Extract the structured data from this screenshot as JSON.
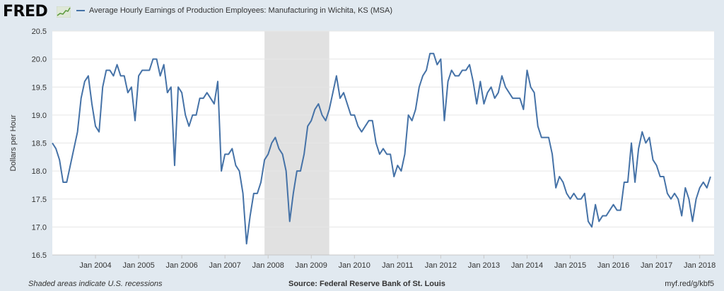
{
  "header": {
    "logo": "FRED",
    "legend_label": "Average Hourly Earnings of Production Employees: Manufacturing in Wichita, KS (MSA)"
  },
  "colors": {
    "line": "#4572a7",
    "recession": "#e1e1e1",
    "plot_bg": "#ffffff",
    "page_bg": "#e1e9f0",
    "grid": "#e6e6e6"
  },
  "chart_data": {
    "type": "line",
    "ylabel": "Dollars per Hour",
    "ylim": [
      16.5,
      20.5
    ],
    "yticks": [
      "16.5",
      "17.0",
      "17.5",
      "18.0",
      "18.5",
      "19.0",
      "19.5",
      "20.0",
      "20.5"
    ],
    "xlim": [
      "2003-01",
      "2018-05"
    ],
    "xticks": [
      {
        "date": "2004-01",
        "label": "Jan 2004"
      },
      {
        "date": "2005-01",
        "label": "Jan 2005"
      },
      {
        "date": "2006-01",
        "label": "Jan 2006"
      },
      {
        "date": "2007-01",
        "label": "Jan 2007"
      },
      {
        "date": "2008-01",
        "label": "Jan 2008"
      },
      {
        "date": "2009-01",
        "label": "Jan 2009"
      },
      {
        "date": "2010-01",
        "label": "Jan 2010"
      },
      {
        "date": "2011-01",
        "label": "Jan 2011"
      },
      {
        "date": "2012-01",
        "label": "Jan 2012"
      },
      {
        "date": "2013-01",
        "label": "Jan 2013"
      },
      {
        "date": "2014-01",
        "label": "Jan 2014"
      },
      {
        "date": "2015-01",
        "label": "Jan 2015"
      },
      {
        "date": "2016-01",
        "label": "Jan 2016"
      },
      {
        "date": "2017-01",
        "label": "Jan 2017"
      },
      {
        "date": "2018-01",
        "label": "Jan 2018"
      }
    ],
    "recessions": [
      {
        "start": "2007-12",
        "end": "2009-06"
      }
    ],
    "grid": true,
    "series": [
      {
        "start": "2003-01",
        "frequency": "monthly",
        "values": [
          18.5,
          18.4,
          18.2,
          17.8,
          17.8,
          18.1,
          18.4,
          18.7,
          19.3,
          19.6,
          19.7,
          19.2,
          18.8,
          18.7,
          19.5,
          19.8,
          19.8,
          19.7,
          19.9,
          19.7,
          19.7,
          19.4,
          19.5,
          18.9,
          19.7,
          19.8,
          19.8,
          19.8,
          20.0,
          20.0,
          19.7,
          19.9,
          19.4,
          19.5,
          18.1,
          19.5,
          19.4,
          19.0,
          18.8,
          19.0,
          19.0,
          19.3,
          19.3,
          19.4,
          19.3,
          19.2,
          19.6,
          18.0,
          18.3,
          18.3,
          18.4,
          18.1,
          18.0,
          17.6,
          16.7,
          17.2,
          17.6,
          17.6,
          17.8,
          18.2,
          18.3,
          18.5,
          18.6,
          18.4,
          18.3,
          18.0,
          17.1,
          17.6,
          18.0,
          18.0,
          18.3,
          18.8,
          18.9,
          19.1,
          19.2,
          19.0,
          18.9,
          19.1,
          19.4,
          19.7,
          19.3,
          19.4,
          19.2,
          19.0,
          19.0,
          18.8,
          18.7,
          18.8,
          18.9,
          18.9,
          18.5,
          18.3,
          18.4,
          18.3,
          18.3,
          17.9,
          18.1,
          18.0,
          18.3,
          19.0,
          18.9,
          19.1,
          19.5,
          19.7,
          19.8,
          20.1,
          20.1,
          19.9,
          20.0,
          18.9,
          19.6,
          19.8,
          19.7,
          19.7,
          19.8,
          19.8,
          19.9,
          19.6,
          19.2,
          19.6,
          19.2,
          19.4,
          19.5,
          19.3,
          19.4,
          19.7,
          19.5,
          19.4,
          19.3,
          19.3,
          19.3,
          19.1,
          19.8,
          19.5,
          19.4,
          18.8,
          18.6,
          18.6,
          18.6,
          18.3,
          17.7,
          17.9,
          17.8,
          17.6,
          17.5,
          17.6,
          17.5,
          17.5,
          17.6,
          17.1,
          17.0,
          17.4,
          17.1,
          17.2,
          17.2,
          17.3,
          17.4,
          17.3,
          17.3,
          17.8,
          17.8,
          18.5,
          17.8,
          18.4,
          18.7,
          18.5,
          18.6,
          18.2,
          18.1,
          17.9,
          17.9,
          17.6,
          17.5,
          17.6,
          17.5,
          17.2,
          17.7,
          17.5,
          17.1,
          17.5,
          17.7,
          17.8,
          17.7,
          17.9
        ]
      }
    ]
  },
  "footer": {
    "note": "Shaded areas indicate U.S. recessions",
    "source": "Source: Federal Reserve Bank of St. Louis",
    "link": "myf.red/g/kbf5"
  }
}
